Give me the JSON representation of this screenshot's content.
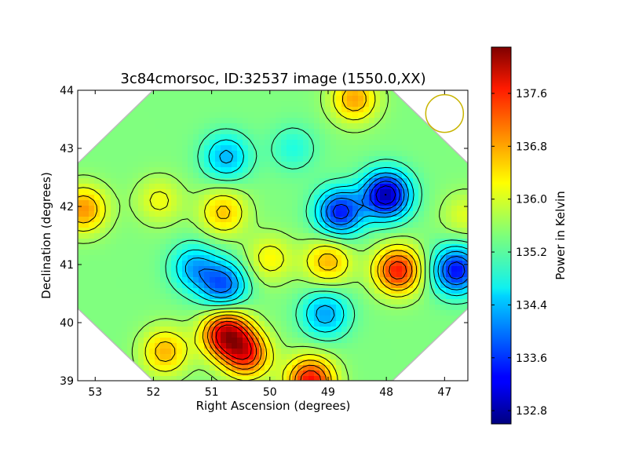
{
  "chart_data": {
    "type": "heatmap",
    "title": "3c84cmorsoc, ID:32537 image (1550.0,XX)",
    "xlabel": "Right Ascension (degrees)",
    "ylabel": "Declination (degrees)",
    "xlim": [
      53.3,
      46.6
    ],
    "ylim": [
      39,
      44
    ],
    "x_ticks": [
      "53",
      "52",
      "51",
      "50",
      "49",
      "48",
      "47"
    ],
    "x_tick_values": [
      53,
      52,
      51,
      50,
      49,
      48,
      47
    ],
    "y_ticks": [
      "39",
      "40",
      "41",
      "42",
      "43",
      "44"
    ],
    "y_tick_values": [
      39,
      40,
      41,
      42,
      43,
      44
    ],
    "colorbar": {
      "label": "Power in Kelvin",
      "range": [
        132.6,
        138.3
      ],
      "ticks": [
        "132.8",
        "133.6",
        "134.4",
        "135.2",
        "136.0",
        "136.8",
        "137.6"
      ],
      "tick_values": [
        132.8,
        133.6,
        134.4,
        135.2,
        136.0,
        136.8,
        137.6
      ],
      "colormap": "jet"
    },
    "features": [
      {
        "ra": 48.0,
        "dec": 42.2,
        "value": 132.8,
        "kind": "minimum"
      },
      {
        "ra": 48.8,
        "dec": 41.9,
        "value": 133.4,
        "kind": "minimum"
      },
      {
        "ra": 46.8,
        "dec": 40.9,
        "value": 133.3,
        "kind": "minimum"
      },
      {
        "ra": 50.8,
        "dec": 40.65,
        "value": 133.8,
        "kind": "minimum"
      },
      {
        "ra": 51.3,
        "dec": 40.95,
        "value": 134.3,
        "kind": "minimum"
      },
      {
        "ra": 49.05,
        "dec": 40.15,
        "value": 134.2,
        "kind": "minimum"
      },
      {
        "ra": 50.75,
        "dec": 42.85,
        "value": 134.3,
        "kind": "minimum"
      },
      {
        "ra": 49.6,
        "dec": 43.0,
        "value": 134.9,
        "kind": "minimum"
      },
      {
        "ra": 50.75,
        "dec": 39.8,
        "value": 137.9,
        "kind": "maximum"
      },
      {
        "ra": 50.4,
        "dec": 39.45,
        "value": 137.3,
        "kind": "maximum"
      },
      {
        "ra": 49.3,
        "dec": 39.0,
        "value": 137.6,
        "kind": "maximum"
      },
      {
        "ra": 51.8,
        "dec": 39.5,
        "value": 136.6,
        "kind": "maximum"
      },
      {
        "ra": 47.8,
        "dec": 40.9,
        "value": 137.5,
        "kind": "maximum"
      },
      {
        "ra": 49.0,
        "dec": 41.05,
        "value": 136.6,
        "kind": "maximum"
      },
      {
        "ra": 53.2,
        "dec": 41.95,
        "value": 136.8,
        "kind": "maximum"
      },
      {
        "ra": 50.8,
        "dec": 41.9,
        "value": 136.5,
        "kind": "maximum"
      },
      {
        "ra": 51.9,
        "dec": 42.1,
        "value": 136.1,
        "kind": "maximum"
      },
      {
        "ra": 48.55,
        "dec": 43.85,
        "value": 136.7,
        "kind": "maximum"
      },
      {
        "ra": 50.0,
        "dec": 41.1,
        "value": 136.2,
        "kind": "maximum"
      },
      {
        "ra": 46.65,
        "dec": 41.85,
        "value": 136.0,
        "kind": "maximum"
      }
    ],
    "beam_marker": {
      "ra": 47.0,
      "dec": 43.6,
      "color": "#c8b400"
    }
  }
}
